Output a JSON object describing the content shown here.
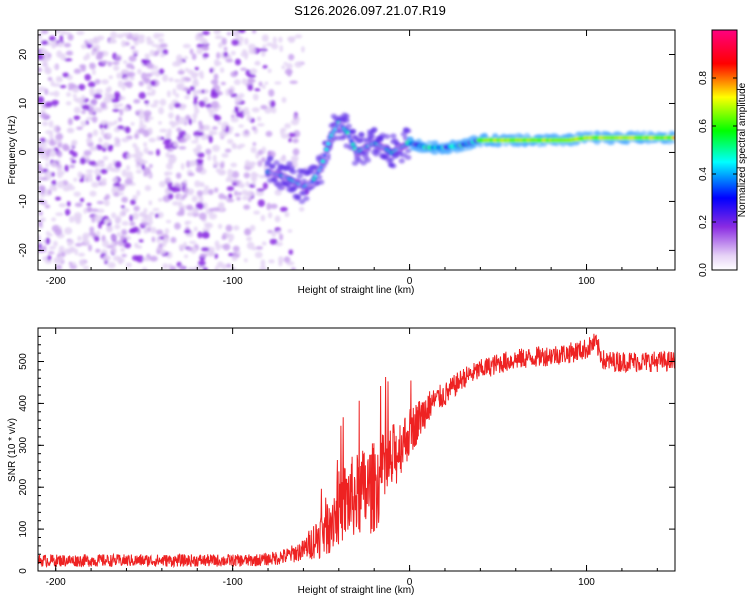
{
  "chart_data": [
    {
      "type": "heatmap",
      "title": "S126.2026.097.21.07.R19",
      "xlabel": "Height of straight line (km)",
      "ylabel": "Frequency (Hz)",
      "xlim": [
        -210,
        150
      ],
      "ylim": [
        -24,
        25
      ],
      "xticks": [
        -200,
        -100,
        0,
        100
      ],
      "yticks": [
        -20,
        -10,
        0,
        10,
        20
      ],
      "xtick_labels": [
        "-200",
        "-100",
        "0",
        "100"
      ],
      "ytick_labels": [
        "-20",
        "-10",
        "0",
        "10",
        "20"
      ],
      "colorbar": {
        "label": "Normalized spectral amplitude",
        "range": [
          0.0,
          1.0
        ],
        "ticks": [
          0.0,
          0.2,
          0.4,
          0.6,
          0.8
        ],
        "tick_labels": [
          "0.0",
          "0.2",
          "0.4",
          "0.6",
          "0.8"
        ],
        "stops": [
          "#ffffff",
          "#8a2be2",
          "#0000ff",
          "#00ffff",
          "#00ff00",
          "#ffff00",
          "#ff0000",
          "#ff0080"
        ]
      },
      "ridge": {
        "x": [
          -80,
          -70,
          -60,
          -55,
          -50,
          -45,
          -40,
          -35,
          -30,
          -25,
          -20,
          -15,
          -10,
          -5,
          0,
          10,
          20,
          30,
          40,
          60,
          80,
          90,
          100,
          120,
          140,
          150
        ],
        "y": [
          -4,
          -5,
          -7,
          -6,
          -3,
          3,
          6,
          4,
          0,
          1,
          2,
          1,
          0,
          1,
          2,
          1,
          1,
          1.5,
          2.5,
          2.5,
          2.5,
          2.5,
          3,
          3,
          3,
          3
        ]
      },
      "noise_region": {
        "x": [
          -210,
          -80
        ],
        "y": [
          -24,
          25
        ],
        "amplitude": 0.15
      }
    },
    {
      "type": "line",
      "title": "",
      "xlabel": "Height of straight line (km)",
      "ylabel": "SNR (10 * v/v)",
      "xlim": [
        -210,
        150
      ],
      "ylim": [
        0,
        580
      ],
      "xticks": [
        -200,
        -100,
        0,
        100
      ],
      "yticks": [
        0,
        100,
        200,
        300,
        400,
        500
      ],
      "xtick_labels": [
        "-200",
        "-100",
        "0",
        "100"
      ],
      "ytick_labels": [
        "0",
        "100",
        "200",
        "300",
        "400",
        "500"
      ],
      "series": [
        {
          "name": "SNR",
          "color": "#ee2222",
          "x": [
            -210,
            -200,
            -190,
            -180,
            -170,
            -160,
            -150,
            -140,
            -130,
            -120,
            -110,
            -100,
            -90,
            -80,
            -70,
            -60,
            -50,
            -45,
            -40,
            -35,
            -30,
            -25,
            -20,
            -15,
            -10,
            -5,
            0,
            5,
            10,
            15,
            20,
            30,
            40,
            50,
            60,
            70,
            80,
            90,
            100,
            105,
            110,
            120,
            130,
            140,
            150
          ],
          "values": [
            25,
            25,
            25,
            25,
            25,
            25,
            25,
            25,
            25,
            25,
            25,
            25,
            25,
            28,
            35,
            50,
            90,
            120,
            150,
            170,
            180,
            190,
            200,
            230,
            260,
            300,
            330,
            360,
            390,
            410,
            420,
            460,
            480,
            495,
            505,
            510,
            515,
            520,
            530,
            545,
            500,
            500,
            500,
            500,
            500
          ],
          "noise": [
            15,
            15,
            15,
            15,
            15,
            15,
            15,
            15,
            15,
            15,
            15,
            15,
            15,
            15,
            20,
            25,
            60,
            80,
            90,
            100,
            100,
            110,
            110,
            100,
            90,
            70,
            60,
            50,
            40,
            30,
            30,
            25,
            25,
            25,
            25,
            25,
            25,
            25,
            25,
            25,
            25,
            25,
            25,
            25,
            25
          ]
        }
      ]
    }
  ]
}
